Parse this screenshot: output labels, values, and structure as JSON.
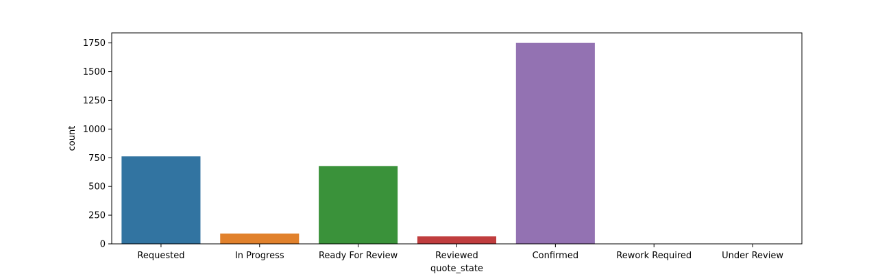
{
  "chart_data": {
    "type": "bar",
    "categories": [
      "Requested",
      "In Progress",
      "Ready For Review",
      "Reviewed",
      "Confirmed",
      "Rework Required",
      "Under Review"
    ],
    "values": [
      762,
      90,
      678,
      65,
      1750,
      2,
      1
    ],
    "colors": [
      "#3274a1",
      "#e1812c",
      "#3a923a",
      "#c03d3e",
      "#9372b2",
      "#845b53",
      "#d684bd"
    ],
    "xlabel": "quote_state",
    "ylabel": "count",
    "ylim": [
      0,
      1837.5
    ],
    "yticks": [
      0,
      250,
      500,
      750,
      1000,
      1250,
      1500,
      1750
    ],
    "ytick_labels": [
      "0",
      "250",
      "500",
      "750",
      "1000",
      "1250",
      "1500",
      "1750"
    ],
    "grid": false,
    "legend": "none"
  }
}
